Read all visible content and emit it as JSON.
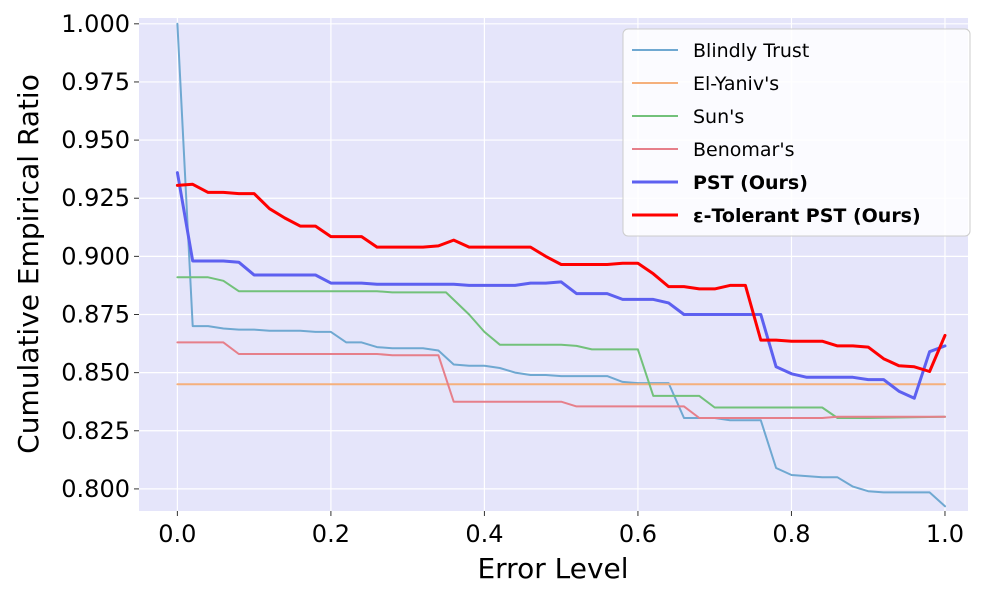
{
  "chart_data": {
    "type": "line",
    "title": "",
    "xlabel": "Error Level",
    "ylabel": "Cumulative Empirical Ratio",
    "xlim": [
      -0.05,
      1.03
    ],
    "ylim": [
      0.7905,
      1.0025
    ],
    "xticks": [
      0.0,
      0.2,
      0.4,
      0.6,
      0.8,
      1.0
    ],
    "xtick_labels": [
      "0.0",
      "0.2",
      "0.4",
      "0.6",
      "0.8",
      "1.0"
    ],
    "yticks": [
      0.8,
      0.825,
      0.85,
      0.875,
      0.9,
      0.925,
      0.95,
      0.975,
      1.0
    ],
    "ytick_labels": [
      "0.800",
      "0.825",
      "0.850",
      "0.875",
      "0.900",
      "0.925",
      "0.950",
      "0.975",
      "1.000"
    ],
    "grid": true,
    "background": "#e5e5fa",
    "legend_position": "top-right",
    "series": [
      {
        "name": "Blindly Trust",
        "color": "#6fa8d1",
        "bold": false,
        "points": [
          [
            0.0,
            1.0
          ],
          [
            0.02,
            0.87
          ],
          [
            0.04,
            0.87
          ],
          [
            0.06,
            0.869
          ],
          [
            0.08,
            0.8685
          ],
          [
            0.1,
            0.8685
          ],
          [
            0.12,
            0.868
          ],
          [
            0.14,
            0.868
          ],
          [
            0.16,
            0.868
          ],
          [
            0.18,
            0.8675
          ],
          [
            0.2,
            0.8675
          ],
          [
            0.22,
            0.863
          ],
          [
            0.24,
            0.863
          ],
          [
            0.26,
            0.861
          ],
          [
            0.28,
            0.8605
          ],
          [
            0.3,
            0.8605
          ],
          [
            0.32,
            0.8605
          ],
          [
            0.34,
            0.8595
          ],
          [
            0.36,
            0.8535
          ],
          [
            0.38,
            0.853
          ],
          [
            0.4,
            0.853
          ],
          [
            0.42,
            0.852
          ],
          [
            0.44,
            0.85
          ],
          [
            0.46,
            0.849
          ],
          [
            0.48,
            0.849
          ],
          [
            0.5,
            0.8485
          ],
          [
            0.52,
            0.8485
          ],
          [
            0.54,
            0.8485
          ],
          [
            0.56,
            0.8485
          ],
          [
            0.58,
            0.846
          ],
          [
            0.6,
            0.8455
          ],
          [
            0.62,
            0.8455
          ],
          [
            0.64,
            0.8455
          ],
          [
            0.66,
            0.8305
          ],
          [
            0.68,
            0.8305
          ],
          [
            0.7,
            0.8305
          ],
          [
            0.72,
            0.8295
          ],
          [
            0.74,
            0.8295
          ],
          [
            0.76,
            0.8295
          ],
          [
            0.78,
            0.809
          ],
          [
            0.8,
            0.806
          ],
          [
            0.82,
            0.8055
          ],
          [
            0.84,
            0.805
          ],
          [
            0.86,
            0.805
          ],
          [
            0.88,
            0.801
          ],
          [
            0.9,
            0.799
          ],
          [
            0.92,
            0.7985
          ],
          [
            0.94,
            0.7985
          ],
          [
            0.96,
            0.7985
          ],
          [
            0.98,
            0.7985
          ],
          [
            1.0,
            0.7925
          ]
        ]
      },
      {
        "name": "El-Yaniv's",
        "color": "#f5b07c",
        "bold": false,
        "points": [
          [
            0.0,
            0.845
          ],
          [
            1.0,
            0.845
          ]
        ]
      },
      {
        "name": "Sun's",
        "color": "#72c17a",
        "bold": false,
        "points": [
          [
            0.0,
            0.891
          ],
          [
            0.02,
            0.891
          ],
          [
            0.04,
            0.891
          ],
          [
            0.06,
            0.8895
          ],
          [
            0.08,
            0.885
          ],
          [
            0.1,
            0.885
          ],
          [
            0.2,
            0.885
          ],
          [
            0.26,
            0.885
          ],
          [
            0.28,
            0.8845
          ],
          [
            0.35,
            0.8845
          ],
          [
            0.38,
            0.875
          ],
          [
            0.4,
            0.8675
          ],
          [
            0.42,
            0.862
          ],
          [
            0.44,
            0.862
          ],
          [
            0.5,
            0.862
          ],
          [
            0.52,
            0.8615
          ],
          [
            0.54,
            0.86
          ],
          [
            0.6,
            0.86
          ],
          [
            0.62,
            0.84
          ],
          [
            0.64,
            0.84
          ],
          [
            0.68,
            0.84
          ],
          [
            0.7,
            0.835
          ],
          [
            0.72,
            0.835
          ],
          [
            0.82,
            0.835
          ],
          [
            0.84,
            0.835
          ],
          [
            0.86,
            0.8305
          ],
          [
            0.9,
            0.8305
          ],
          [
            1.0,
            0.831
          ]
        ]
      },
      {
        "name": "Benomar's",
        "color": "#e67f8a",
        "bold": false,
        "points": [
          [
            0.0,
            0.863
          ],
          [
            0.02,
            0.863
          ],
          [
            0.04,
            0.863
          ],
          [
            0.06,
            0.863
          ],
          [
            0.08,
            0.858
          ],
          [
            0.1,
            0.858
          ],
          [
            0.2,
            0.858
          ],
          [
            0.26,
            0.858
          ],
          [
            0.28,
            0.8575
          ],
          [
            0.34,
            0.8575
          ],
          [
            0.36,
            0.8375
          ],
          [
            0.38,
            0.8375
          ],
          [
            0.5,
            0.8375
          ],
          [
            0.52,
            0.8355
          ],
          [
            0.54,
            0.8355
          ],
          [
            0.64,
            0.8355
          ],
          [
            0.66,
            0.8355
          ],
          [
            0.68,
            0.8305
          ],
          [
            0.7,
            0.8305
          ],
          [
            0.84,
            0.8305
          ],
          [
            0.86,
            0.831
          ],
          [
            0.98,
            0.831
          ],
          [
            1.0,
            0.831
          ]
        ]
      },
      {
        "name": "PST (Ours)",
        "color": "#5d60f0",
        "bold": true,
        "points": [
          [
            0.0,
            0.936
          ],
          [
            0.02,
            0.898
          ],
          [
            0.04,
            0.898
          ],
          [
            0.06,
            0.898
          ],
          [
            0.08,
            0.8975
          ],
          [
            0.1,
            0.892
          ],
          [
            0.12,
            0.892
          ],
          [
            0.14,
            0.892
          ],
          [
            0.16,
            0.892
          ],
          [
            0.18,
            0.892
          ],
          [
            0.2,
            0.8885
          ],
          [
            0.22,
            0.8885
          ],
          [
            0.24,
            0.8885
          ],
          [
            0.26,
            0.888
          ],
          [
            0.28,
            0.888
          ],
          [
            0.36,
            0.888
          ],
          [
            0.38,
            0.8875
          ],
          [
            0.4,
            0.8875
          ],
          [
            0.44,
            0.8875
          ],
          [
            0.46,
            0.8885
          ],
          [
            0.48,
            0.8885
          ],
          [
            0.5,
            0.889
          ],
          [
            0.52,
            0.884
          ],
          [
            0.54,
            0.884
          ],
          [
            0.56,
            0.884
          ],
          [
            0.58,
            0.8815
          ],
          [
            0.6,
            0.8815
          ],
          [
            0.62,
            0.8815
          ],
          [
            0.64,
            0.88
          ],
          [
            0.66,
            0.875
          ],
          [
            0.68,
            0.875
          ],
          [
            0.76,
            0.875
          ],
          [
            0.78,
            0.8525
          ],
          [
            0.8,
            0.8495
          ],
          [
            0.82,
            0.848
          ],
          [
            0.84,
            0.848
          ],
          [
            0.86,
            0.848
          ],
          [
            0.88,
            0.848
          ],
          [
            0.9,
            0.847
          ],
          [
            0.92,
            0.847
          ],
          [
            0.94,
            0.842
          ],
          [
            0.96,
            0.839
          ],
          [
            0.98,
            0.859
          ],
          [
            1.0,
            0.8615
          ]
        ]
      },
      {
        "name": "ε-Tolerant PST (Ours)",
        "color": "#ff0000",
        "bold": true,
        "points": [
          [
            0.0,
            0.9305
          ],
          [
            0.02,
            0.931
          ],
          [
            0.04,
            0.9275
          ],
          [
            0.06,
            0.9275
          ],
          [
            0.08,
            0.927
          ],
          [
            0.1,
            0.927
          ],
          [
            0.12,
            0.9205
          ],
          [
            0.14,
            0.9165
          ],
          [
            0.16,
            0.913
          ],
          [
            0.18,
            0.913
          ],
          [
            0.2,
            0.9085
          ],
          [
            0.22,
            0.9085
          ],
          [
            0.24,
            0.9085
          ],
          [
            0.26,
            0.904
          ],
          [
            0.28,
            0.904
          ],
          [
            0.3,
            0.904
          ],
          [
            0.32,
            0.904
          ],
          [
            0.34,
            0.9045
          ],
          [
            0.36,
            0.907
          ],
          [
            0.38,
            0.904
          ],
          [
            0.4,
            0.904
          ],
          [
            0.46,
            0.904
          ],
          [
            0.48,
            0.9
          ],
          [
            0.5,
            0.8965
          ],
          [
            0.52,
            0.8965
          ],
          [
            0.56,
            0.8965
          ],
          [
            0.58,
            0.897
          ],
          [
            0.6,
            0.897
          ],
          [
            0.62,
            0.8925
          ],
          [
            0.64,
            0.887
          ],
          [
            0.66,
            0.887
          ],
          [
            0.68,
            0.886
          ],
          [
            0.7,
            0.886
          ],
          [
            0.72,
            0.8875
          ],
          [
            0.74,
            0.8875
          ],
          [
            0.76,
            0.864
          ],
          [
            0.78,
            0.864
          ],
          [
            0.8,
            0.8635
          ],
          [
            0.84,
            0.8635
          ],
          [
            0.86,
            0.8615
          ],
          [
            0.88,
            0.8615
          ],
          [
            0.9,
            0.861
          ],
          [
            0.92,
            0.856
          ],
          [
            0.94,
            0.853
          ],
          [
            0.96,
            0.8525
          ],
          [
            0.98,
            0.8505
          ],
          [
            1.0,
            0.866
          ]
        ]
      }
    ]
  }
}
